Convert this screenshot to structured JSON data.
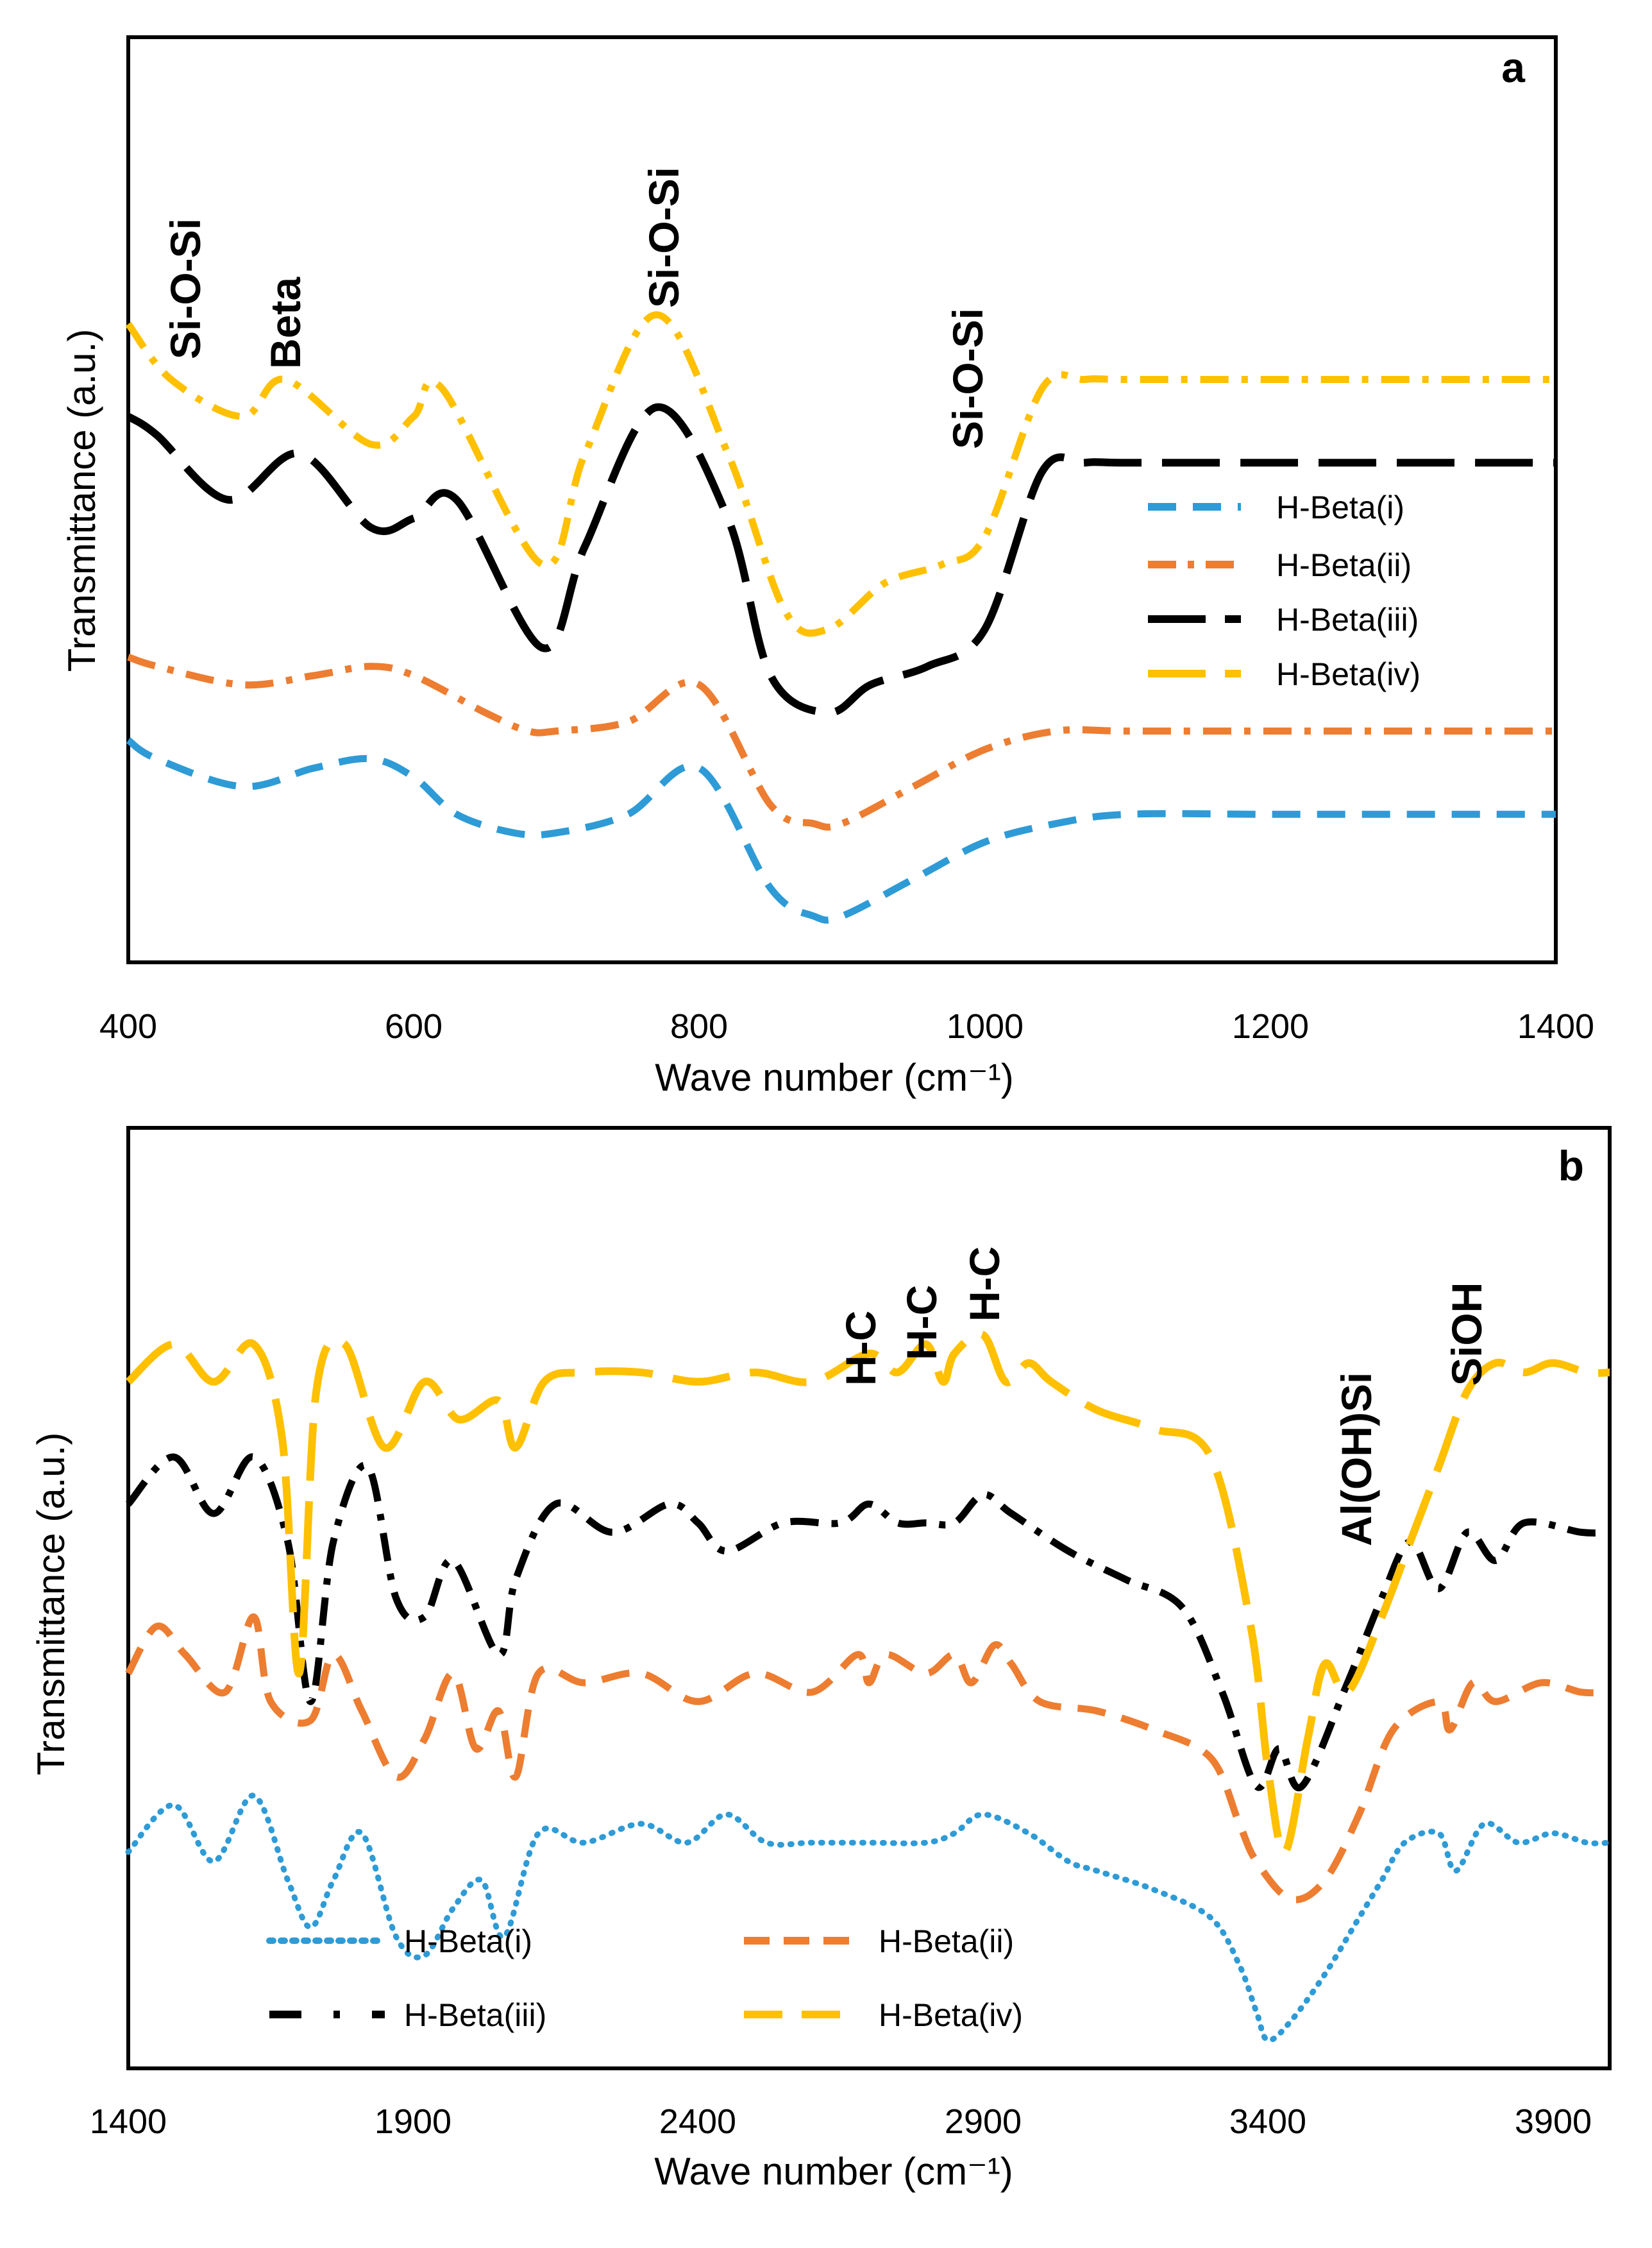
{
  "chart_data": [
    {
      "type": "line",
      "panel": "a",
      "xlabel": "Wave number (cm⁻¹)",
      "ylabel": "Transmittance (a.u.)",
      "xlim": [
        400,
        1400
      ],
      "ylim": [
        0,
        100
      ],
      "xticks": [
        "400",
        "600",
        "800",
        "1000",
        "1200",
        "1400"
      ],
      "annotations": [
        "Si-O-Si",
        "Beta",
        "Si-O-Si",
        "Si-O-Si"
      ],
      "legend_position": "right",
      "series": [
        {
          "name": "H-Beta(i)",
          "style": "dash",
          "color": "#2E9BD6",
          "x": [
            400,
            420,
            480,
            530,
            570,
            600,
            630,
            670,
            700,
            750,
            800,
            850,
            880,
            900,
            950,
            1000,
            1050,
            1100,
            1200,
            1300,
            1400
          ],
          "y": [
            24,
            22,
            19,
            21,
            22,
            20,
            16,
            14,
            14,
            16,
            21,
            8,
            5,
            5,
            9,
            13,
            15,
            16,
            16,
            16,
            16
          ]
        },
        {
          "name": "H-Beta(ii)",
          "style": "dashdot",
          "color": "#ED7D31",
          "x": [
            400,
            420,
            480,
            530,
            570,
            600,
            650,
            680,
            700,
            750,
            800,
            850,
            880,
            900,
            950,
            1000,
            1050,
            1100,
            1200,
            1300,
            1400
          ],
          "y": [
            33,
            32,
            30,
            31,
            32,
            31,
            27,
            25,
            25,
            26,
            30,
            17,
            15,
            15,
            19,
            23,
            25,
            25,
            25,
            25,
            25
          ]
        },
        {
          "name": "H-Beta(iii)",
          "style": "longdash",
          "color": "#000000",
          "x": [
            400,
            420,
            470,
            520,
            570,
            600,
            630,
            690,
            720,
            770,
            820,
            850,
            890,
            920,
            960,
            1000,
            1040,
            1070,
            1100,
            1200,
            1300,
            1400
          ],
          "y": [
            59,
            57,
            50,
            55,
            47,
            48,
            50,
            34,
            45,
            60,
            48,
            31,
            27,
            30,
            32,
            36,
            53,
            54,
            54,
            54,
            54,
            54
          ]
        },
        {
          "name": "H-Beta(iv)",
          "style": "dashdot",
          "color": "#FFC000",
          "x": [
            400,
            430,
            480,
            510,
            570,
            600,
            620,
            690,
            720,
            770,
            820,
            860,
            890,
            930,
            970,
            1000,
            1040,
            1070,
            1100,
            1200,
            1300,
            1400
          ],
          "y": [
            69,
            63,
            59,
            63,
            56,
            59,
            62,
            43,
            55,
            70,
            55,
            38,
            36,
            41,
            43,
            46,
            62,
            63,
            63,
            63,
            63,
            63
          ]
        }
      ]
    },
    {
      "type": "line",
      "panel": "b",
      "xlabel": "Wave number (cm⁻¹)",
      "ylabel": "Transmittance (a.u.)",
      "xlim": [
        1400,
        4000
      ],
      "ylim": [
        0,
        100
      ],
      "xticks": [
        "1400",
        "1900",
        "2400",
        "2900",
        "3400",
        "3900"
      ],
      "annotations": [
        "H-C",
        "H-C",
        "H-C",
        "Al(OH)Si",
        "SiOH"
      ],
      "legend_position": "bottom-left",
      "series": [
        {
          "name": "H-Beta(i)",
          "style": "dot",
          "color": "#2E9BD6",
          "x": [
            1400,
            1480,
            1550,
            1620,
            1680,
            1720,
            1760,
            1810,
            1870,
            1920,
            1970,
            2020,
            2060,
            2120,
            2200,
            2300,
            2380,
            2450,
            2520,
            2600,
            2700,
            2800,
            2850,
            2900,
            2980,
            3050,
            3100,
            3200,
            3300,
            3350,
            3380,
            3400,
            3440,
            3500,
            3560,
            3600,
            3640,
            3700,
            3730,
            3780,
            3840,
            3900,
            3960,
            4000
          ],
          "y": [
            23,
            28,
            22,
            29,
            20,
            15,
            20,
            25,
            14,
            12,
            17,
            20,
            14,
            25,
            24,
            26,
            24,
            27,
            24,
            24,
            24,
            24,
            25,
            27,
            25,
            22,
            21,
            19,
            16,
            11,
            6,
            3,
            5,
            10,
            16,
            20,
            24,
            25,
            21,
            26,
            24,
            25,
            24,
            24
          ]
        },
        {
          "name": "H-Beta(ii)",
          "style": "dash",
          "color": "#ED7D31",
          "x": [
            1400,
            1450,
            1500,
            1570,
            1620,
            1650,
            1720,
            1760,
            1810,
            1870,
            1920,
            1970,
            2010,
            2050,
            2080,
            2120,
            2200,
            2300,
            2400,
            2500,
            2600,
            2680,
            2700,
            2730,
            2800,
            2850,
            2880,
            2920,
            2950,
            3000,
            3100,
            3200,
            3300,
            3350,
            3380,
            3440,
            3500,
            3560,
            3620,
            3700,
            3720,
            3760,
            3800,
            3880,
            3950,
            4000
          ],
          "y": [
            42,
            47,
            44,
            40,
            48,
            39,
            37,
            44,
            38,
            31,
            35,
            42,
            34,
            38,
            31,
            42,
            41,
            42,
            39,
            42,
            40,
            44,
            41,
            44,
            42,
            44,
            41,
            45,
            43,
            39,
            38,
            36,
            33,
            26,
            22,
            18,
            20,
            27,
            36,
            39,
            36,
            41,
            39,
            41,
            40,
            40
          ]
        },
        {
          "name": "H-Beta(iii)",
          "style": "dashdot",
          "color": "#000000",
          "x": [
            1400,
            1480,
            1550,
            1620,
            1680,
            1720,
            1760,
            1820,
            1870,
            1920,
            1970,
            2050,
            2080,
            2150,
            2250,
            2350,
            2400,
            2450,
            2550,
            2650,
            2700,
            2750,
            2800,
            2850,
            2900,
            2950,
            3050,
            3150,
            3250,
            3320,
            3380,
            3420,
            3460,
            3540,
            3600,
            3650,
            3700,
            3750,
            3800,
            3850,
            3950,
            4000
          ],
          "y": [
            60,
            65,
            59,
            65,
            56,
            39,
            56,
            64,
            50,
            48,
            54,
            44,
            52,
            60,
            57,
            60,
            58,
            55,
            58,
            58,
            60,
            58,
            58,
            58,
            61,
            59,
            55,
            52,
            49,
            40,
            30,
            34,
            30,
            41,
            50,
            56,
            51,
            57,
            54,
            58,
            57,
            57
          ]
        },
        {
          "name": "H-Beta(iv)",
          "style": "longdash",
          "color": "#FFC000",
          "x": [
            1400,
            1480,
            1550,
            1620,
            1670,
            1700,
            1730,
            1780,
            1850,
            1920,
            1980,
            2050,
            2080,
            2130,
            2200,
            2300,
            2400,
            2500,
            2600,
            2700,
            2750,
            2800,
            2830,
            2850,
            2900,
            2940,
            2980,
            3020,
            3100,
            3200,
            3300,
            3370,
            3400,
            3430,
            3470,
            3500,
            3540,
            3600,
            3650,
            3700,
            3750,
            3800,
            3850,
            3900,
            3960,
            4000
          ],
          "y": [
            73,
            77,
            73,
            77,
            67,
            42,
            72,
            77,
            66,
            73,
            69,
            71,
            66,
            73,
            74,
            74,
            73,
            74,
            73,
            76,
            74,
            77,
            73,
            76,
            78,
            73,
            75,
            73,
            70,
            68,
            65,
            47,
            32,
            23,
            35,
            43,
            40,
            48,
            56,
            64,
            72,
            75,
            74,
            75,
            74,
            74
          ]
        }
      ]
    }
  ]
}
